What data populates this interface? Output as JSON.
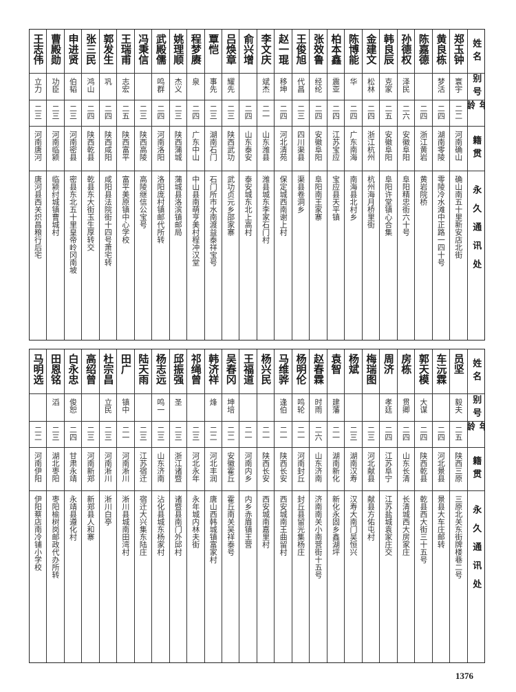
{
  "headers": {
    "name": "姓名",
    "alias": "别号",
    "age": "年龄",
    "origin": "籍贯",
    "address": "永久通讯处"
  },
  "page_number": "1376",
  "top_table": [
    {
      "name": "郑玉钟",
      "alias": "寰宇",
      "age": "二二",
      "origin": "河南确山",
      "address": "确山南五十里新安店北街"
    },
    {
      "name": "黄良栋",
      "alias": "梦活",
      "age": "二四",
      "origin": "湖南零陵",
      "address": "零陵冷水滩中正路一四十号"
    },
    {
      "name": "陈嘉德",
      "alias": "",
      "age": "二四",
      "origin": "浙江黄岩",
      "address": "黄岩院桥"
    },
    {
      "name": "孙德权",
      "alias": "泽民",
      "age": "二六",
      "origin": "安徽阜阳",
      "address": "阜阳精忠街六十号"
    },
    {
      "name": "韩良辰",
      "alias": "克家",
      "age": "二五",
      "origin": "安徽阜阳",
      "address": "阜阳许堂镇心合集"
    },
    {
      "name": "金建文",
      "alias": "松林",
      "age": "二四",
      "origin": "浙江杭州",
      "address": "杭州海月桥里街"
    },
    {
      "name": "陈博能",
      "alias": "华",
      "age": "二四",
      "origin": "广东南海",
      "address": "南海县北村乡"
    },
    {
      "name": "柏本鑫",
      "alias": "震亚",
      "age": "二四",
      "origin": "江苏宝应",
      "address": "宝应县天平镇"
    },
    {
      "name": "张效鲁",
      "alias": "经纶",
      "age": "二四",
      "origin": "安徽阜阳",
      "address": "阜阳南王家寨"
    },
    {
      "name": "王俊旭",
      "alias": "代昌",
      "age": "二三",
      "origin": "四川渠县",
      "address": "渠县卷洞乡"
    },
    {
      "name": "赵一琨",
      "alias": "移坤",
      "age": "二四",
      "origin": "河北清苑",
      "address": "保定城西南谢上村"
    },
    {
      "name": "李文庆",
      "alias": "斌杰",
      "age": "二一",
      "origin": "山东潍县",
      "address": "潍县城东李家石门村"
    },
    {
      "name": "俞兴增",
      "alias": "",
      "age": "二四",
      "origin": "山东泰安",
      "address": "泰安城东北上高村"
    },
    {
      "name": "吕焕章",
      "alias": "耀先",
      "age": "二三",
      "origin": "陕西武功",
      "address": "武功贞元乡邵家寨"
    },
    {
      "name": "覃恺",
      "alias": "事先",
      "age": "二三",
      "origin": "湖南石门",
      "address": "石门所市水南渡益泰祥宝号"
    },
    {
      "name": "程梦赓",
      "alias": "泉",
      "age": "二四",
      "origin": "广东中山",
      "address": "中山县南萌亨美村程冲汉堂"
    },
    {
      "name": "姚理顺",
      "alias": "杰义",
      "age": "二三",
      "origin": "陕西蒲城",
      "address": "蒲城县洛滨镇邮局"
    },
    {
      "name": "武殿儒",
      "alias": "鸣群",
      "age": "二四",
      "origin": "河南洛阳",
      "address": "洛阳庞村镇邮代所转"
    },
    {
      "name": "冯秉信",
      "alias": "",
      "age": "二三",
      "origin": "陕西高陵",
      "address": "高陵继信公宝号"
    },
    {
      "name": "王瑞甫",
      "alias": "志宏",
      "age": "二五",
      "origin": "陕西富平",
      "address": "富平美原镇中心学校"
    },
    {
      "name": "郭发生",
      "alias": "巩",
      "age": "二四",
      "origin": "陕西咸阳",
      "address": "咸阳县法院街十四号萧宅转"
    },
    {
      "name": "张三民",
      "alias": "鸿山",
      "age": "二四",
      "origin": "陕西乾县",
      "address": "乾县东大街玉生厚转交"
    },
    {
      "name": "申进贤",
      "alias": "伯韬",
      "age": "二三",
      "origin": "河南密县",
      "address": "密县东北五十里皇帝岭冈南坡"
    },
    {
      "name": "曹殿勋",
      "alias": "功臣",
      "age": "二三",
      "origin": "河南临颍",
      "address": "临颍纣城镇曹城村"
    },
    {
      "name": "王志伟",
      "alias": "立力",
      "age": "二三",
      "origin": "河南唐河",
      "address": "唐河县西关炽昌粮行后宅"
    }
  ],
  "bottom_table": [
    {
      "name": "员坚",
      "alias": "毅夫",
      "age": "二五",
      "origin": "陕西三原",
      "address": "三原北关东街牌楼巷二号"
    },
    {
      "name": "车沅霖",
      "alias": "",
      "age": "二四",
      "origin": "河北景县",
      "address": "景县大车庄邮转"
    },
    {
      "name": "郭天模",
      "alias": "大谋",
      "age": "二四",
      "origin": "陕西乾县",
      "address": "乾县西大街三十五号"
    },
    {
      "name": "房栋",
      "alias": "贯卿",
      "age": "二四",
      "origin": "山东长清",
      "address": "长清城西大房家庄"
    },
    {
      "name": "周济",
      "alias": "孝廷",
      "age": "二四",
      "origin": "江苏阜宁",
      "address": "江苏盐城袁家庄交"
    },
    {
      "name": "梅瑞图",
      "alias": "",
      "age": "二三",
      "origin": "河北献县",
      "address": "献县方佑屯村"
    },
    {
      "name": "杨斌",
      "alias": "",
      "age": "二三",
      "origin": "湖南汉寿",
      "address": "汉寿大南门吴恒兴"
    },
    {
      "name": "袁智",
      "alias": "建藩",
      "age": "二一",
      "origin": "湖南新化",
      "address": "新化永固乡鑫湖坪"
    },
    {
      "name": "赵春霖",
      "alias": "时雨",
      "age": "二六",
      "origin": "山东济南",
      "address": "济南南关小南营街十五号"
    },
    {
      "name": "杨明伦",
      "alias": "鸣轮",
      "age": "二一",
      "origin": "河南封丘",
      "address": "封丘县留光集杨庄"
    },
    {
      "name": "马维骅",
      "alias": "逢伯",
      "age": "二一",
      "origin": "陕西长安",
      "address": "西安城南王曲留村"
    },
    {
      "name": "杨兴民",
      "alias": "",
      "age": "二一",
      "origin": "陕西长安",
      "address": "西安城南嘉里村"
    },
    {
      "name": "王福道",
      "alias": "",
      "age": "二一",
      "origin": "河南内乡",
      "address": "内乡赤眉镇王营"
    },
    {
      "name": "吴春冈",
      "alias": "坤培",
      "age": "二二",
      "origin": "安徽霍丘",
      "address": "霍丘南关吴祥泰号"
    },
    {
      "name": "韩济祥",
      "alias": "烽",
      "age": "二二",
      "origin": "河北丰润",
      "address": "唐山西韩城镇富家村"
    },
    {
      "name": "祁绳曾",
      "alias": "",
      "age": "二三",
      "origin": "河北永年",
      "address": "永年城内林夫街"
    },
    {
      "name": "邱振强",
      "alias": "圣",
      "age": "二三",
      "origin": "浙江诸暨",
      "address": "诸暨县南门外邱村"
    },
    {
      "name": "杨志远",
      "alias": "鸣一",
      "age": "二三",
      "origin": "山东济南",
      "address": "沾化县城东杨家村"
    },
    {
      "name": "陆天雨",
      "alias": "",
      "age": "二三",
      "origin": "江苏宿迁",
      "address": "宿迁大兴集东陆庄"
    },
    {
      "name": "田广",
      "alias": "镇中",
      "age": "二一",
      "origin": "河南淅川",
      "address": "淅川县城南田湾村"
    },
    {
      "name": "杜宗昌",
      "alias": "立民",
      "age": "二三",
      "origin": "河南淅川",
      "address": "淅川白亭"
    },
    {
      "name": "高绍曾",
      "alias": "",
      "age": "二三",
      "origin": "河南新郑",
      "address": "新郑县人和寨"
    },
    {
      "name": "白永忠",
      "alias": "俊恕",
      "age": "二四",
      "origin": "甘肃永靖",
      "address": "永靖县遵化村"
    },
    {
      "name": "田恩铭",
      "alias": "滔",
      "age": "二三",
      "origin": "湖北枣阳",
      "address": "枣阳榆树岗邮政代办所转"
    },
    {
      "name": "马明选",
      "alias": "",
      "age": "二二",
      "origin": "河南伊阳",
      "address": "伊阳蔡店南冷铺小学校"
    }
  ]
}
